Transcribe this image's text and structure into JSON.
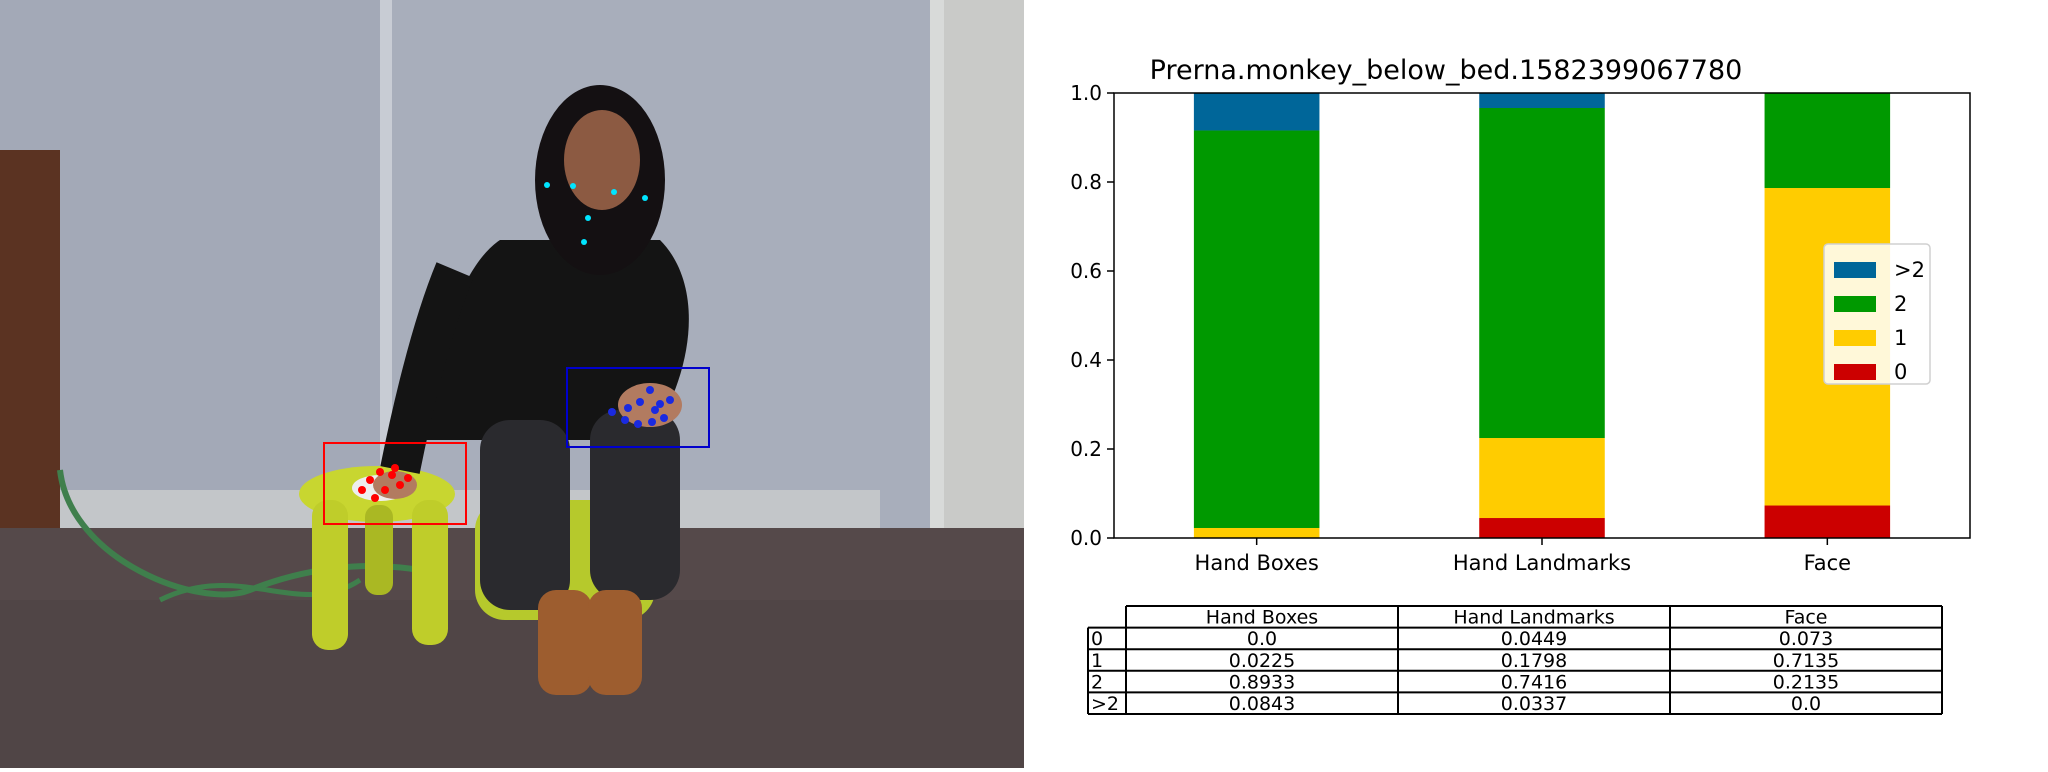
{
  "chart_data": {
    "type": "bar",
    "stacked": true,
    "title": "Prerna.monkey_below_bed.1582399067780",
    "categories": [
      "Hand Boxes",
      "Hand Landmarks",
      "Face"
    ],
    "series": [
      {
        "name": "0",
        "color": "#cc0000",
        "values": [
          0.0,
          0.0449,
          0.073
        ]
      },
      {
        "name": "1",
        "color": "#ffcc00",
        "values": [
          0.0225,
          0.1798,
          0.7135
        ]
      },
      {
        "name": "2",
        "color": "#009900",
        "values": [
          0.8933,
          0.7416,
          0.2135
        ]
      },
      {
        "name": ">2",
        "color": "#006699",
        "values": [
          0.0843,
          0.0337,
          0.0
        ]
      }
    ],
    "ylim": [
      0,
      1
    ],
    "yticks": [
      "0.0",
      "0.2",
      "0.4",
      "0.6",
      "0.8",
      "1.0"
    ],
    "legend": {
      "placement": "center-right",
      "order": [
        ">2",
        "2",
        "1",
        "0"
      ]
    },
    "table": {
      "columns": [
        "Hand Boxes",
        "Hand Landmarks",
        "Face"
      ],
      "rows": [
        {
          "label": "0",
          "cells": [
            "0.0",
            "0.0449",
            "0.073"
          ]
        },
        {
          "label": "1",
          "cells": [
            "0.0225",
            "0.1798",
            "0.7135"
          ]
        },
        {
          "label": "2",
          "cells": [
            "0.8933",
            "0.7416",
            "0.2135"
          ]
        },
        {
          "label": ">2",
          "cells": [
            "0.0843",
            "0.0337",
            "0.0"
          ]
        }
      ]
    }
  },
  "photo": {
    "scene": "person seated on a small green stool beside a yellow stool with a computer mouse",
    "colors": {
      "wall": "#a9afbd",
      "carpet": "#5a4f4a",
      "stool": "#c8d630",
      "left_hand_box": "#ff0000",
      "right_hand_box": "#0000cc",
      "face_points": "#00e5ff"
    }
  }
}
